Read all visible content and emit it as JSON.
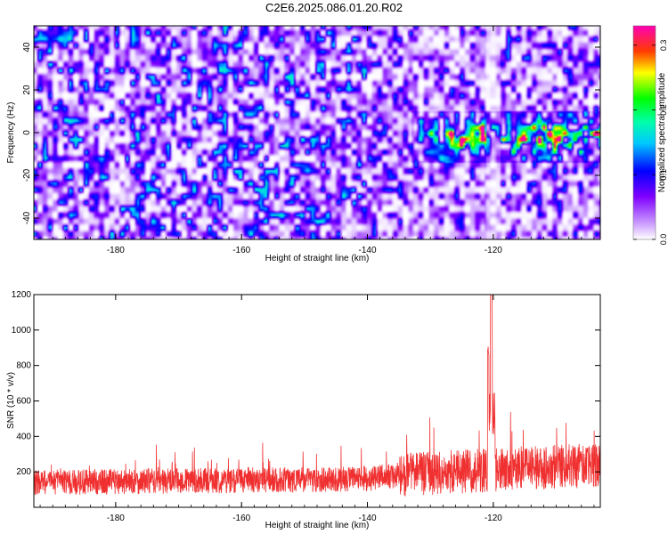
{
  "title": "C2E6.2025.086.01.20.R02",
  "chart_data": [
    {
      "type": "heatmap",
      "xlabel": "Height of straight line (km)",
      "ylabel": "Frequency (Hz)",
      "xlim": [
        -193,
        -103
      ],
      "ylim": [
        -50,
        50
      ],
      "x_ticks": [
        -180,
        -160,
        -140,
        -120
      ],
      "y_ticks": [
        -40,
        -20,
        0,
        20,
        40
      ],
      "colorbar": {
        "label": "Normalized spectral amplitude",
        "range": [
          0.0,
          0.33
        ],
        "ticks": [
          0.0,
          0.1,
          0.2,
          0.3
        ],
        "colormap": [
          "#ffffff",
          "#7f00ff",
          "#0000ff",
          "#00ffff",
          "#00ff00",
          "#ffff00",
          "#ff0000",
          "#ff00ff"
        ]
      },
      "features": {
        "background_level": 0.05,
        "signal_band_hz": [
          -10,
          10
        ],
        "signal_band_x_range": [
          -133,
          -103
        ],
        "signal_peak_level": 0.32,
        "gap_x": -120
      }
    },
    {
      "type": "line",
      "xlabel": "Height of straight line (km)",
      "ylabel": "SNR (10 * v/v)",
      "xlim": [
        -193,
        -103
      ],
      "ylim": [
        0,
        1200
      ],
      "x_ticks": [
        -180,
        -160,
        -140,
        -120
      ],
      "y_ticks": [
        200,
        400,
        600,
        800,
        1000,
        1200
      ],
      "series": [
        {
          "color": "#f03030",
          "baseline_mean": 150,
          "noise_amplitude": 180,
          "trend": [
            [
              -193,
              140
            ],
            [
              -140,
              160
            ],
            [
              -133,
              190
            ],
            [
              -103,
              240
            ]
          ],
          "peak": {
            "x": -120.3,
            "value": 1200
          },
          "peak_shoulder": {
            "x": -120.8,
            "value": 920
          }
        }
      ]
    }
  ]
}
